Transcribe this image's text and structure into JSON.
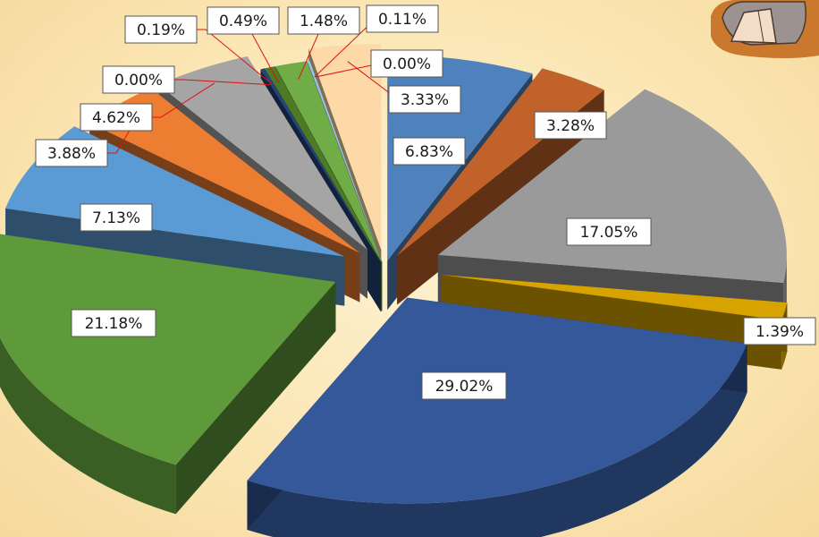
{
  "chart_data": {
    "type": "pie",
    "style": "3d-exploded",
    "legend": "none",
    "slices": [
      {
        "label": "6.83%",
        "value": 6.83,
        "color": "#4f81bd"
      },
      {
        "label": "3.28%",
        "value": 3.28,
        "color": "#c0622a"
      },
      {
        "label": "17.05%",
        "value": 17.05,
        "color": "#9a9a9a"
      },
      {
        "label": "1.39%",
        "value": 1.39,
        "color": "#d6a300"
      },
      {
        "label": "29.02%",
        "value": 29.02,
        "color": "#34589a"
      },
      {
        "label": "21.18%",
        "value": 21.18,
        "color": "#5e9a3a"
      },
      {
        "label": "7.13%",
        "value": 7.13,
        "color": "#5b9bd5"
      },
      {
        "label": "3.88%",
        "value": 3.88,
        "color": "#ed7d31"
      },
      {
        "label": "4.62%",
        "value": 4.62,
        "color": "#a5a5a5"
      },
      {
        "label": "0.00%",
        "value": 0.0,
        "color": "#ffc000"
      },
      {
        "label": "0.19%",
        "value": 0.19,
        "color": "#264478"
      },
      {
        "label": "0.49%",
        "value": 0.49,
        "color": "#4e7a26"
      },
      {
        "label": "1.48%",
        "value": 1.48,
        "color": "#70ad47"
      },
      {
        "label": "0.11%",
        "value": 0.11,
        "color": "#9dc3e6"
      },
      {
        "label": "0.00%",
        "value": 0.0,
        "color": "#f4b183"
      },
      {
        "label": "3.33%",
        "value": 3.33,
        "color": "#fdd9a8"
      }
    ]
  }
}
